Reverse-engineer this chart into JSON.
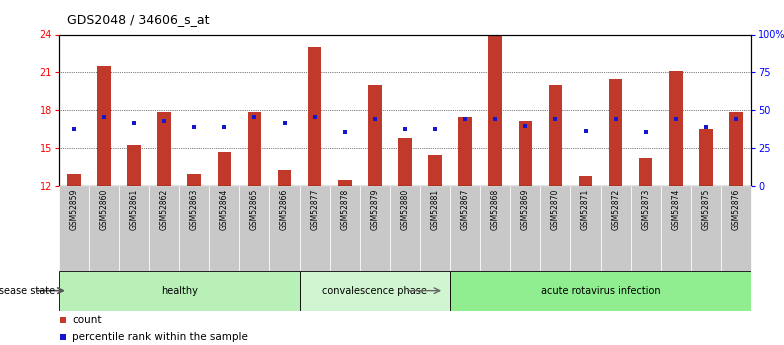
{
  "title": "GDS2048 / 34606_s_at",
  "samples": [
    "GSM52859",
    "GSM52860",
    "GSM52861",
    "GSM52862",
    "GSM52863",
    "GSM52864",
    "GSM52865",
    "GSM52866",
    "GSM52877",
    "GSM52878",
    "GSM52879",
    "GSM52880",
    "GSM52881",
    "GSM52867",
    "GSM52868",
    "GSM52869",
    "GSM52870",
    "GSM52871",
    "GSM52872",
    "GSM52873",
    "GSM52874",
    "GSM52875",
    "GSM52876"
  ],
  "count_values": [
    13.0,
    21.5,
    15.3,
    17.85,
    13.0,
    14.7,
    17.9,
    13.3,
    23.0,
    12.5,
    20.0,
    15.8,
    14.5,
    17.5,
    24.1,
    17.2,
    20.0,
    12.8,
    20.5,
    14.2,
    21.1,
    16.5,
    17.9
  ],
  "percentile_values": [
    16.5,
    17.45,
    17.0,
    17.2,
    16.7,
    16.7,
    17.45,
    17.0,
    17.45,
    16.3,
    17.35,
    16.55,
    16.55,
    17.35,
    17.3,
    16.8,
    17.35,
    16.4,
    17.3,
    16.3,
    17.35,
    16.7,
    17.35
  ],
  "groups": [
    {
      "name": "healthy",
      "start": 0,
      "end": 8,
      "color": "#b8f0b8"
    },
    {
      "name": "convalescence phase",
      "start": 8,
      "end": 13,
      "color": "#d0f5d0"
    },
    {
      "name": "acute rotavirus infection",
      "start": 13,
      "end": 23,
      "color": "#90ee90"
    }
  ],
  "ylim_left": [
    12,
    24
  ],
  "ylim_right": [
    0,
    100
  ],
  "yticks_left": [
    12,
    15,
    18,
    21,
    24
  ],
  "yticks_right": [
    0,
    25,
    50,
    75,
    100
  ],
  "ytick_labels_right": [
    "0",
    "25",
    "50",
    "75",
    "100%"
  ],
  "bar_color": "#c0392b",
  "dot_color": "#1515cc",
  "bar_width": 0.45,
  "bg_color": "#ffffff",
  "xtick_bg": "#c8c8c8",
  "legend_count": "count",
  "legend_pct": "percentile rank within the sample",
  "disease_label": "disease state"
}
